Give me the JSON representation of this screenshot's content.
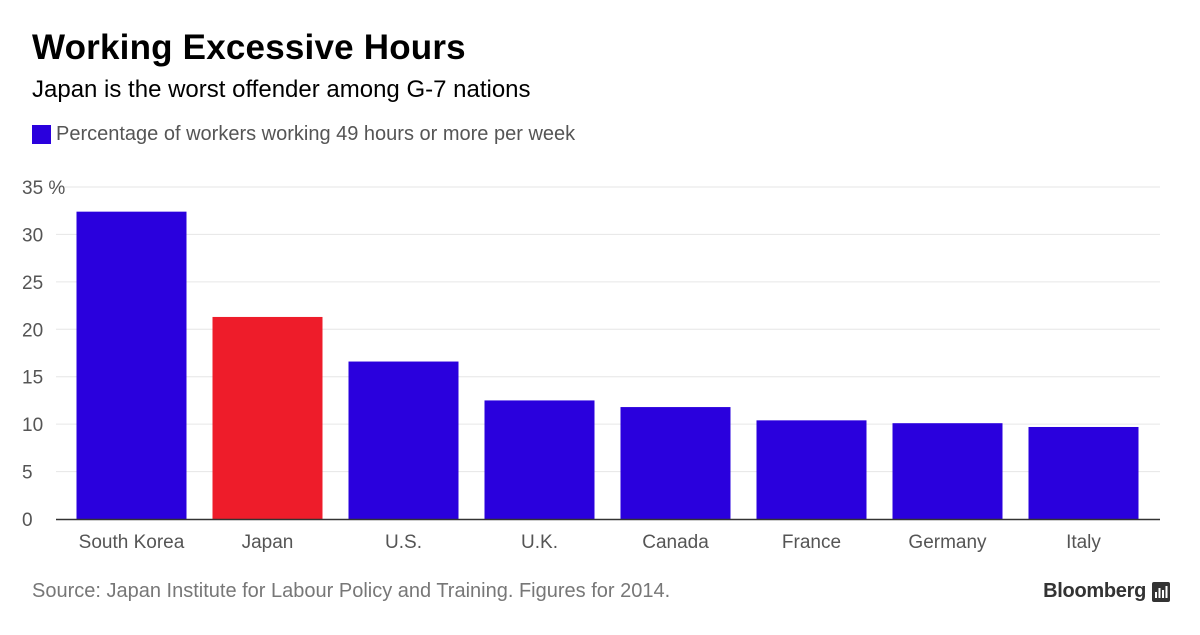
{
  "title": "Working Excessive Hours",
  "subtitle": "Japan is the worst offender among G-7 nations",
  "legend": {
    "label": "Percentage of workers working 49 hours or more per week",
    "color": "#2a00dd"
  },
  "source": "Source: Japan Institute for Labour Policy and Training. Figures for 2014.",
  "brand": {
    "name": "Bloomberg",
    "icon": "bloomberg-terminal-icon"
  },
  "colors": {
    "primary": "#2a00dd",
    "highlight": "#ee1c2a",
    "axis_text": "#555555",
    "grid": "#e6e6e6",
    "baseline": "#333333"
  },
  "chart_data": {
    "type": "bar",
    "categories": [
      "South Korea",
      "Japan",
      "U.S.",
      "U.K.",
      "Canada",
      "France",
      "Germany",
      "Italy"
    ],
    "series": [
      {
        "name": "Percentage of workers working 49 hours or more per week",
        "values": [
          32.4,
          21.3,
          16.6,
          12.5,
          11.8,
          10.4,
          10.1,
          9.7
        ]
      }
    ],
    "highlight_category": "Japan",
    "ylim": [
      0,
      35
    ],
    "yticks": [
      0,
      5,
      10,
      15,
      20,
      25,
      30,
      35
    ],
    "ytick_labels": [
      "0",
      "5",
      "10",
      "15",
      "20",
      "25",
      "30",
      "35 %"
    ],
    "grid": true,
    "legend_position": "top-left",
    "xlabel": "",
    "ylabel": ""
  }
}
